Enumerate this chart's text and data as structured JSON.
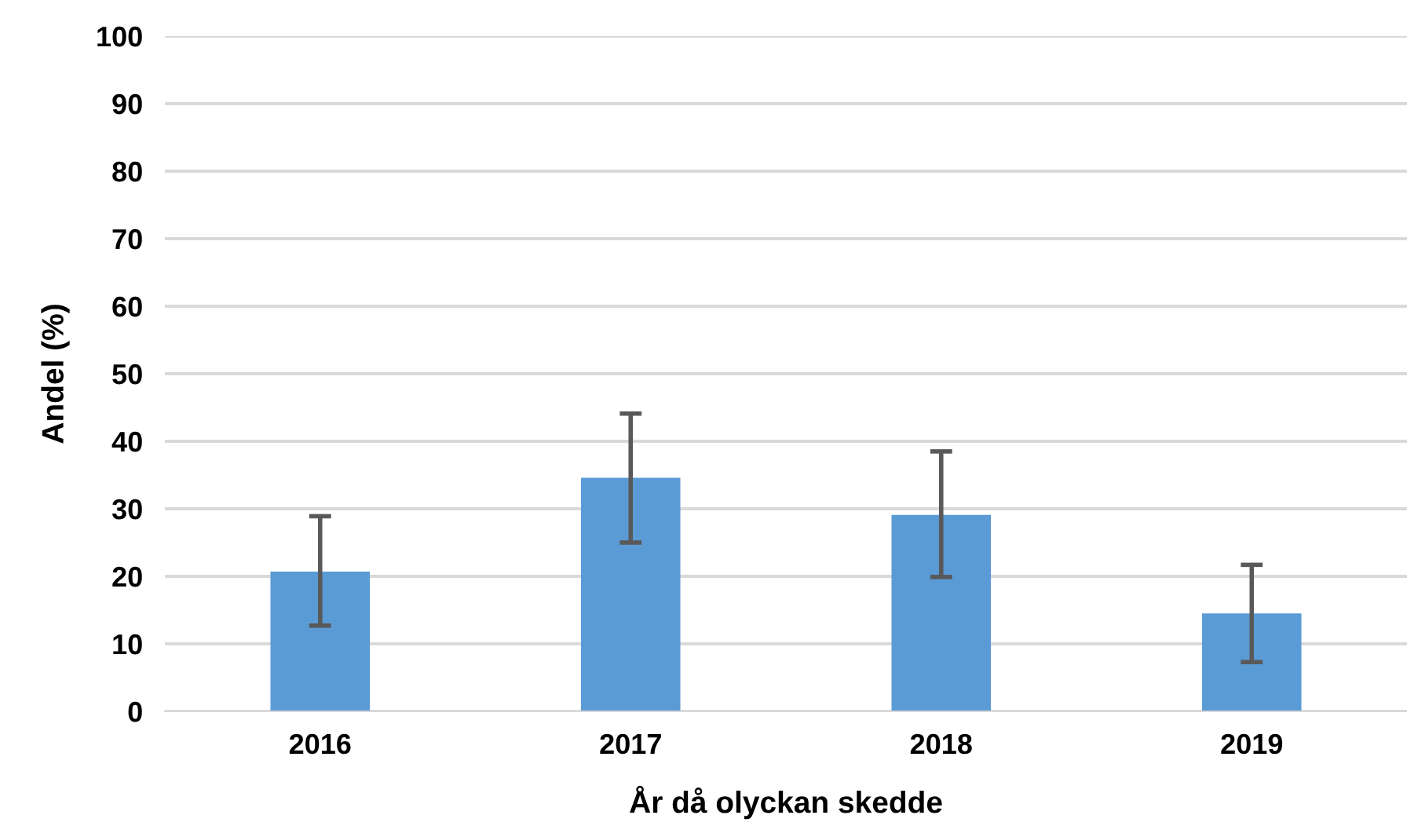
{
  "chart_data": {
    "type": "bar",
    "xlabel": "År då olyckan skedde",
    "ylabel": "Andel (%)",
    "categories": [
      "2016",
      "2017",
      "2018",
      "2019"
    ],
    "values": [
      20.7,
      34.6,
      29.1,
      14.5
    ],
    "color": "#5b9bd5",
    "errors": [
      [
        12.7,
        28.9
      ],
      [
        25.0,
        44.1
      ],
      [
        19.9,
        38.5
      ],
      [
        7.3,
        21.7
      ]
    ],
    "ylim": [
      0,
      100
    ],
    "yticks": [
      0,
      10,
      20,
      30,
      40,
      50,
      60,
      70,
      80,
      90,
      100
    ],
    "grid": "y"
  }
}
